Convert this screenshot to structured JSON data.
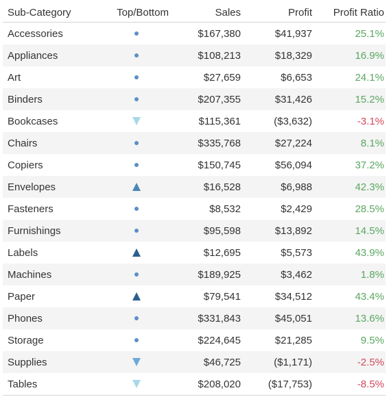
{
  "headers": {
    "subcategory": "Sub-Category",
    "topbottom": "Top/Bottom",
    "sales": "Sales",
    "profit": "Profit",
    "ratio": "Profit Ratio"
  },
  "colors": {
    "dot": "#5b8fc6",
    "top_dark": "#2c5f8e",
    "top_mid": "#4a86b8",
    "bottom_light": "#a8d8ea",
    "bottom_mid": "#6fa8d6",
    "positive": "#5aa661",
    "negative": "#d1495b"
  },
  "rows": [
    {
      "name": "Accessories",
      "marker": "dot-icon",
      "sales": "$167,380",
      "profit": "$41,937",
      "ratio": "25.1%",
      "sign": "pos"
    },
    {
      "name": "Appliances",
      "marker": "dot-icon",
      "sales": "$108,213",
      "profit": "$18,329",
      "ratio": "16.9%",
      "sign": "pos"
    },
    {
      "name": "Art",
      "marker": "dot-icon",
      "sales": "$27,659",
      "profit": "$6,653",
      "ratio": "24.1%",
      "sign": "pos"
    },
    {
      "name": "Binders",
      "marker": "dot-icon",
      "sales": "$207,355",
      "profit": "$31,426",
      "ratio": "15.2%",
      "sign": "pos"
    },
    {
      "name": "Bookcases",
      "marker": "triangle-down-light-icon",
      "sales": "$115,361",
      "profit": "($3,632)",
      "ratio": "-3.1%",
      "sign": "neg"
    },
    {
      "name": "Chairs",
      "marker": "dot-icon",
      "sales": "$335,768",
      "profit": "$27,224",
      "ratio": "8.1%",
      "sign": "pos"
    },
    {
      "name": "Copiers",
      "marker": "dot-icon",
      "sales": "$150,745",
      "profit": "$56,094",
      "ratio": "37.2%",
      "sign": "pos"
    },
    {
      "name": "Envelopes",
      "marker": "triangle-up-mid-icon",
      "sales": "$16,528",
      "profit": "$6,988",
      "ratio": "42.3%",
      "sign": "pos"
    },
    {
      "name": "Fasteners",
      "marker": "dot-icon",
      "sales": "$8,532",
      "profit": "$2,429",
      "ratio": "28.5%",
      "sign": "pos"
    },
    {
      "name": "Furnishings",
      "marker": "dot-icon",
      "sales": "$95,598",
      "profit": "$13,892",
      "ratio": "14.5%",
      "sign": "pos"
    },
    {
      "name": "Labels",
      "marker": "triangle-up-dark-icon",
      "sales": "$12,695",
      "profit": "$5,573",
      "ratio": "43.9%",
      "sign": "pos"
    },
    {
      "name": "Machines",
      "marker": "dot-icon",
      "sales": "$189,925",
      "profit": "$3,462",
      "ratio": "1.8%",
      "sign": "pos"
    },
    {
      "name": "Paper",
      "marker": "triangle-up-dark-icon",
      "sales": "$79,541",
      "profit": "$34,512",
      "ratio": "43.4%",
      "sign": "pos"
    },
    {
      "name": "Phones",
      "marker": "dot-icon",
      "sales": "$331,843",
      "profit": "$45,051",
      "ratio": "13.6%",
      "sign": "pos"
    },
    {
      "name": "Storage",
      "marker": "dot-icon",
      "sales": "$224,645",
      "profit": "$21,285",
      "ratio": "9.5%",
      "sign": "pos"
    },
    {
      "name": "Supplies",
      "marker": "triangle-down-mid-icon",
      "sales": "$46,725",
      "profit": "($1,171)",
      "ratio": "-2.5%",
      "sign": "neg"
    },
    {
      "name": "Tables",
      "marker": "triangle-down-light-icon",
      "sales": "$208,020",
      "profit": "($17,753)",
      "ratio": "-8.5%",
      "sign": "neg"
    }
  ]
}
